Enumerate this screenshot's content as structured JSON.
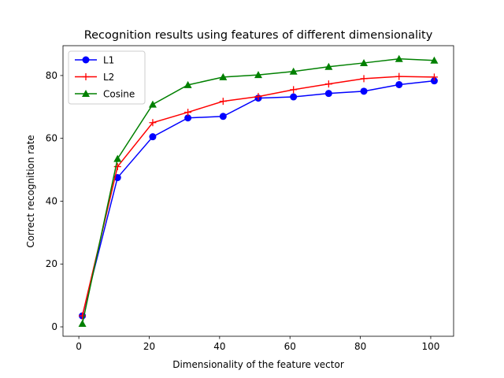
{
  "chart_data": {
    "type": "line",
    "title": "Recognition results using features of different dimensionality",
    "xlabel": "Dimensionality of the feature vector",
    "ylabel": "Correct recognition rate",
    "xlim": [
      -4.5,
      106.5
    ],
    "ylim": [
      -3.0,
      89.5
    ],
    "xticks": [
      0,
      20,
      40,
      60,
      80,
      100
    ],
    "yticks": [
      0,
      20,
      40,
      60,
      80
    ],
    "grid": false,
    "legend_position": "upper-left",
    "x": [
      1,
      11,
      21,
      31,
      41,
      51,
      61,
      71,
      81,
      91,
      101
    ],
    "series": [
      {
        "name": "L1",
        "color": "#0000ff",
        "marker": "circle",
        "values": [
          3.5,
          47.5,
          60.5,
          66.5,
          67.0,
          72.8,
          73.2,
          74.3,
          75.0,
          77.1,
          78.3
        ]
      },
      {
        "name": "L2",
        "color": "#ff0000",
        "marker": "plus",
        "values": [
          3.5,
          51.0,
          65.0,
          68.3,
          71.8,
          73.3,
          75.5,
          77.3,
          79.0,
          79.7,
          79.5
        ]
      },
      {
        "name": "Cosine",
        "color": "#008000",
        "marker": "triangle",
        "values": [
          1.0,
          53.5,
          70.8,
          77.0,
          79.5,
          80.2,
          81.3,
          82.8,
          84.0,
          85.3,
          84.8
        ]
      }
    ]
  }
}
